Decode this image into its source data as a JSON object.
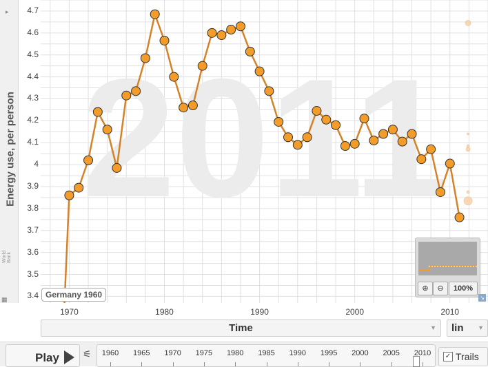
{
  "year_watermark": "2011",
  "y_axis": {
    "label": "Energy use, per person",
    "source": "World Bank",
    "ticks": [
      "3.4",
      "3.5",
      "3.6",
      "3.7",
      "3.8",
      "3.9",
      "4",
      "4.1",
      "4.2",
      "4.3",
      "4.4",
      "4.5",
      "4.6",
      "4.7"
    ]
  },
  "x_axis": {
    "selector_label": "Time",
    "scale": "lin",
    "ticks": [
      "1970",
      "1980",
      "1990",
      "2000",
      "2010"
    ]
  },
  "tooltip": "Germany 1960",
  "minimap": {
    "zoom": "100%",
    "zoom_in": "+",
    "zoom_out": "−"
  },
  "player": {
    "play_label": "Play",
    "timeline_labels": [
      "1960",
      "1965",
      "1970",
      "1975",
      "1980",
      "1985",
      "1990",
      "1995",
      "2000",
      "2005",
      "2010"
    ],
    "trails_label": "Trails",
    "trails_checked": "✓"
  },
  "colors": {
    "series": "#f39c2a",
    "line": "#d4822a",
    "grid": "#e0e0e0",
    "watermark": "#ececec"
  },
  "chart_data": {
    "type": "line",
    "title": "",
    "xlabel": "Time",
    "ylabel": "Energy use, per person",
    "xlim": [
      1967,
      2014
    ],
    "ylim": [
      3.37,
      4.75
    ],
    "grid": true,
    "series": [
      {
        "name": "Germany",
        "x": [
          1970,
          1971,
          1972,
          1973,
          1974,
          1975,
          1976,
          1977,
          1978,
          1979,
          1980,
          1981,
          1982,
          1983,
          1984,
          1985,
          1986,
          1987,
          1988,
          1989,
          1990,
          1991,
          1992,
          1993,
          1994,
          1995,
          1996,
          1997,
          1998,
          1999,
          2000,
          2001,
          2002,
          2003,
          2004,
          2005,
          2006,
          2007,
          2008,
          2009,
          2010,
          2011
        ],
        "y": [
          3.86,
          3.895,
          4.02,
          4.24,
          4.16,
          3.985,
          4.315,
          4.335,
          4.485,
          4.685,
          4.565,
          4.4,
          4.26,
          4.27,
          4.45,
          4.6,
          4.59,
          4.615,
          4.63,
          4.515,
          4.425,
          4.335,
          4.195,
          4.125,
          4.09,
          4.125,
          4.245,
          4.205,
          4.18,
          4.085,
          4.095,
          4.21,
          4.11,
          4.14,
          4.16,
          4.105,
          4.14,
          4.025,
          4.07,
          3.875,
          4.005,
          3.76
        ]
      }
    ]
  }
}
